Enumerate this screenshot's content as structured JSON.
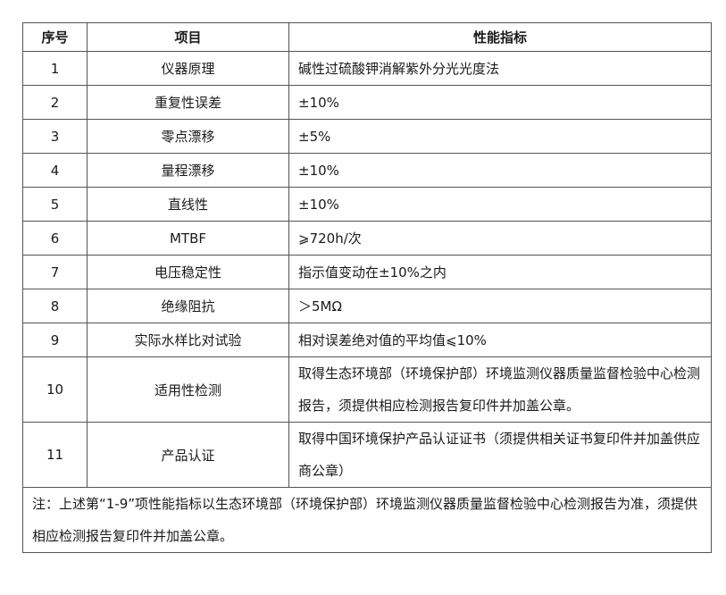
{
  "headers": [
    "序号",
    "项目",
    "性能指标"
  ],
  "rows": [
    {
      "no": "1",
      "item": "仪器原理",
      "spec": "碱性过硫酸钾消解紫外分光光度法"
    },
    {
      "no": "2",
      "item": "重复性误差",
      "spec": "±10%"
    },
    {
      "no": "3",
      "item": "零点漂移",
      "spec": "±5%"
    },
    {
      "no": "4",
      "item": "量程漂移",
      "spec": "±10%"
    },
    {
      "no": "5",
      "item": "直线性",
      "spec": "±10%"
    },
    {
      "no": "6",
      "item": "MTBF",
      "spec": "⩾720h/次"
    },
    {
      "no": "7",
      "item": "电压稳定性",
      "spec": "指示值变动在±10%之内"
    },
    {
      "no": "8",
      "item": "绝缘阻抗",
      "spec": "＞5MΩ"
    },
    {
      "no": "9",
      "item": "实际水样比对试验",
      "spec": "相对误差绝对值的平均值⩽10%"
    },
    {
      "no": "10",
      "item": "适用性检测",
      "spec": "取得生态环境部（环境保护部）环境监测仪器质量监督检验中心检测报告，须提供相应检测报告复印件并加盖公章。"
    },
    {
      "no": "11",
      "item": "产品认证",
      "spec": "取得中国环境保护产品认证证书（须提供相关证书复印件并加盖供应商公章）"
    }
  ],
  "note": "注：上述第“1-9”项性能指标以生态环境部（环境保护部）环境监测仪器质量监督检验中心检测报告为准，须提供相应检测报告复印件并加盖公章。"
}
